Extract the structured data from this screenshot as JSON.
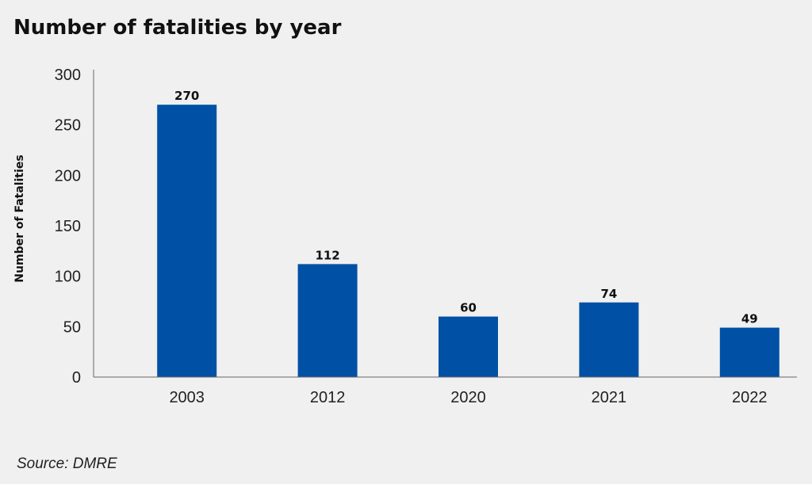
{
  "chart_data": {
    "type": "bar",
    "title": "Number of fatalities by year",
    "categories": [
      "2003",
      "2012",
      "2020",
      "2021",
      "2022"
    ],
    "values": [
      270,
      112,
      60,
      74,
      49
    ],
    "data_labels": [
      "270",
      "112",
      "60",
      "74",
      "49"
    ],
    "xlabel": "",
    "ylabel": "Number of Fatalities",
    "ylim": [
      0,
      300
    ],
    "yticks": [
      0,
      50,
      100,
      150,
      200,
      250,
      300
    ],
    "grid": false,
    "legend": "none",
    "bar_color": "#0051a5"
  },
  "source": "Source: DMRE"
}
